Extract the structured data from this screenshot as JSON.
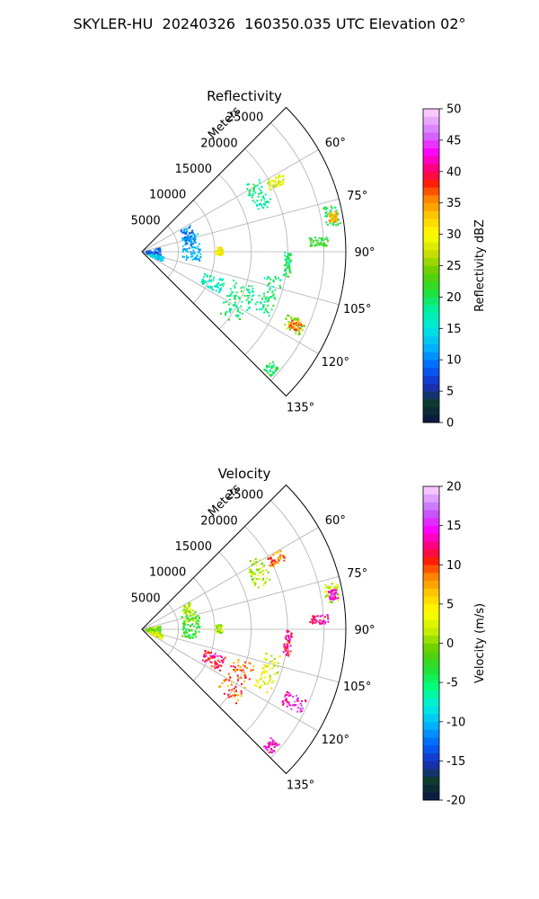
{
  "figure_title": "SKYLER-HU  20240326  160350.035 UTC Elevation 02°",
  "chart_data": [
    {
      "type": "polar-sector-ppi",
      "title": "Reflectivity",
      "range_label": "Meters",
      "range_ticks": [
        5000,
        10000,
        15000,
        20000,
        25000
      ],
      "range_max": 28000,
      "angle_range_deg": [
        45,
        135
      ],
      "angle_ticks_deg": [
        60,
        75,
        90,
        105,
        120,
        135
      ],
      "angle_tick_labels": [
        "60°",
        "75°",
        "90°",
        "105°",
        "120°",
        "135°"
      ],
      "grid": true,
      "colorbar": {
        "label": "Reflectivity dBZ",
        "min": 0,
        "max": 50,
        "ticks": [
          0,
          5,
          10,
          15,
          20,
          25,
          30,
          35,
          40,
          45,
          50
        ]
      },
      "echo_features": [
        {
          "az": [
            57,
            70
          ],
          "r": [
            16500,
            19000
          ],
          "value": 18
        },
        {
          "az": [
            60,
            64
          ],
          "r": [
            19500,
            22000
          ],
          "value": 28
        },
        {
          "az": [
            76,
            82
          ],
          "r": [
            25500,
            27500
          ],
          "value": 20
        },
        {
          "az": [
            78,
            81
          ],
          "r": [
            26000,
            27200
          ],
          "value": 34
        },
        {
          "az": [
            85,
            88
          ],
          "r": [
            23000,
            25500
          ],
          "value": 21
        },
        {
          "az": [
            90,
            100
          ],
          "r": [
            19500,
            20500
          ],
          "value": 20
        },
        {
          "az": [
            100,
            117
          ],
          "r": [
            17000,
            19500
          ],
          "value": 19
        },
        {
          "az": [
            113,
            118
          ],
          "r": [
            21500,
            24500
          ],
          "value": 25
        },
        {
          "az": [
            114,
            117
          ],
          "r": [
            22500,
            24000
          ],
          "value": 36
        },
        {
          "az": [
            107,
            128
          ],
          "r": [
            13000,
            16500
          ],
          "value": 19
        },
        {
          "az": [
            108,
            118
          ],
          "r": [
            9000,
            12000
          ],
          "value": 17
        },
        {
          "az": [
            70,
            100
          ],
          "r": [
            5500,
            8000
          ],
          "value": 12
        },
        {
          "az": [
            60,
            80
          ],
          "r": [
            6000,
            7500
          ],
          "value": 10
        },
        {
          "az": [
            75,
            105
          ],
          "r": [
            500,
            2500
          ],
          "value": 8
        },
        {
          "az": [
            100,
            115
          ],
          "r": [
            1000,
            3000
          ],
          "value": 14
        },
        {
          "az": [
            86,
            92
          ],
          "r": [
            10000,
            11000
          ],
          "value": 30
        },
        {
          "az": [
            130,
            134
          ],
          "r": [
            23000,
            24500
          ],
          "value": 20
        }
      ]
    },
    {
      "type": "polar-sector-ppi",
      "title": "Velocity",
      "range_label": "Meters",
      "range_ticks": [
        5000,
        10000,
        15000,
        20000,
        25000
      ],
      "range_max": 28000,
      "angle_range_deg": [
        45,
        135
      ],
      "angle_ticks_deg": [
        60,
        75,
        90,
        105,
        120,
        135
      ],
      "angle_tick_labels": [
        "60°",
        "75°",
        "90°",
        "105°",
        "120°",
        "135°"
      ],
      "grid": true,
      "colorbar": {
        "label": "Velocity (m/s)",
        "min": -20,
        "max": 20,
        "ticks": [
          -20,
          -15,
          -10,
          -5,
          0,
          5,
          10,
          15,
          20
        ]
      },
      "echo_features": [
        {
          "az": [
            57,
            70
          ],
          "r": [
            16500,
            19000
          ],
          "value": 1
        },
        {
          "az": [
            60,
            64
          ],
          "r": [
            19500,
            22000
          ],
          "value": 9
        },
        {
          "az": [
            76,
            82
          ],
          "r": [
            25500,
            27500
          ],
          "value": 1
        },
        {
          "az": [
            78,
            81
          ],
          "r": [
            26000,
            27200
          ],
          "value": 14
        },
        {
          "az": [
            85,
            88
          ],
          "r": [
            23000,
            25500
          ],
          "value": 13
        },
        {
          "az": [
            90,
            100
          ],
          "r": [
            19500,
            20500
          ],
          "value": 12
        },
        {
          "az": [
            100,
            117
          ],
          "r": [
            17000,
            19500
          ],
          "value": 3
        },
        {
          "az": [
            113,
            118
          ],
          "r": [
            21500,
            24500
          ],
          "value": 14
        },
        {
          "az": [
            107,
            128
          ],
          "r": [
            13000,
            16500
          ],
          "value": 9
        },
        {
          "az": [
            108,
            118
          ],
          "r": [
            9000,
            12000
          ],
          "value": 12
        },
        {
          "az": [
            70,
            100
          ],
          "r": [
            5500,
            8000
          ],
          "value": -3
        },
        {
          "az": [
            60,
            80
          ],
          "r": [
            6000,
            7500
          ],
          "value": 1
        },
        {
          "az": [
            75,
            105
          ],
          "r": [
            500,
            2500
          ],
          "value": -1
        },
        {
          "az": [
            100,
            115
          ],
          "r": [
            1000,
            3000
          ],
          "value": 3
        },
        {
          "az": [
            86,
            92
          ],
          "r": [
            10000,
            11000
          ],
          "value": 1
        },
        {
          "az": [
            130,
            134
          ],
          "r": [
            23000,
            24500
          ],
          "value": 14
        }
      ]
    }
  ]
}
